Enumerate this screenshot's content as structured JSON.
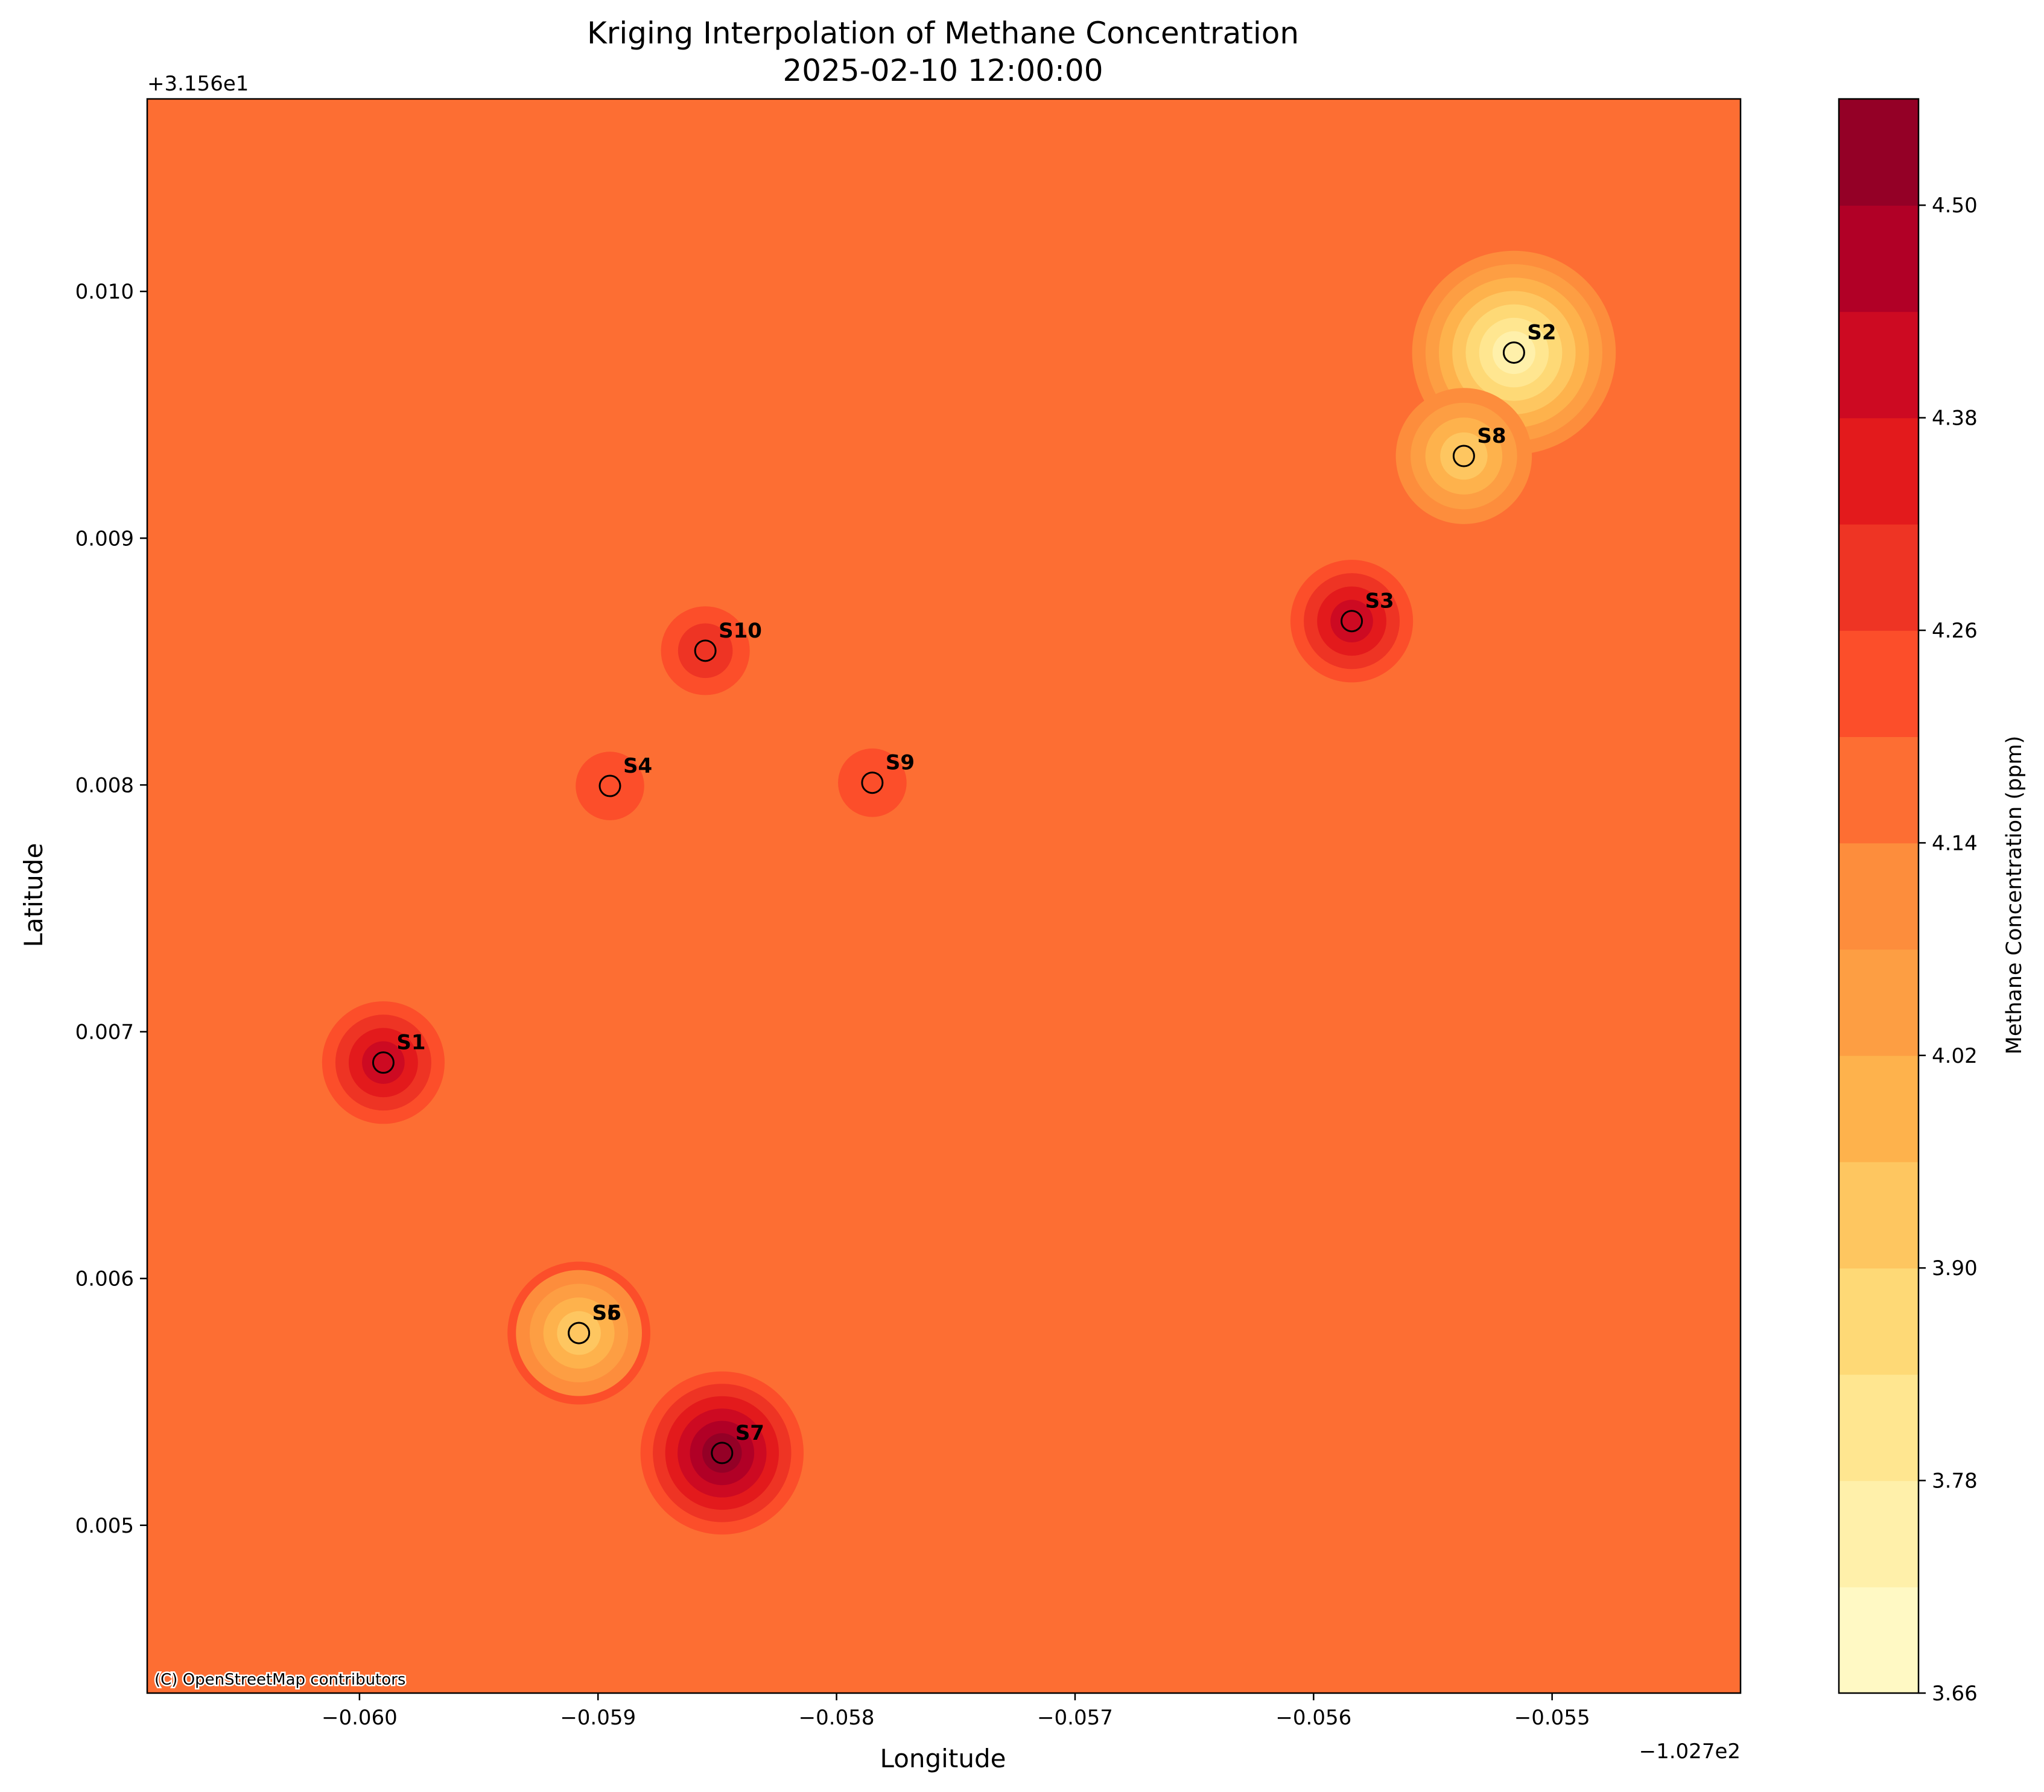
{
  "chart_data": {
    "type": "heatmap",
    "title": "Kriging Interpolation of Methane Concentration",
    "subtitle": "2025-02-10 12:00:00",
    "xlabel": "Longitude",
    "ylabel": "Latitude",
    "x_offset_label": "−1.027e2",
    "y_offset_label": "+3.156e1",
    "xlim": [
      -0.06089,
      -0.05421
    ],
    "ylim": [
      0.00432,
      0.01078
    ],
    "xticks": [
      -0.06,
      -0.059,
      -0.058,
      -0.057,
      -0.056,
      -0.055
    ],
    "xtick_labels": [
      "−0.060",
      "−0.059",
      "−0.058",
      "−0.057",
      "−0.056",
      "−0.055"
    ],
    "yticks": [
      0.005,
      0.006,
      0.007,
      0.008,
      0.009,
      0.01
    ],
    "ytick_labels": [
      "0.005",
      "0.006",
      "0.007",
      "0.008",
      "0.009",
      "0.010"
    ],
    "background_value": 4.18,
    "attribution": "(C) OpenStreetMap contributors",
    "colorbar": {
      "label": "Methane Concentration (ppm)",
      "vmin": 3.66,
      "vmax": 4.56,
      "levels": [
        3.66,
        3.72,
        3.78,
        3.84,
        3.9,
        3.96,
        4.02,
        4.08,
        4.14,
        4.2,
        4.26,
        4.32,
        4.38,
        4.44,
        4.5,
        4.56
      ],
      "colors": [
        "#fff9c4",
        "#fff0aa",
        "#ffe690",
        "#fed976",
        "#fec660",
        "#feb24c",
        "#fd9e43",
        "#fd8d3c",
        "#fd6e33",
        "#fc4e2a",
        "#ee3424",
        "#e31a1c",
        "#cd0a22",
        "#b10026",
        "#940026"
      ],
      "tick_values": [
        3.66,
        3.78,
        3.9,
        4.02,
        4.14,
        4.26,
        4.38,
        4.5
      ],
      "tick_labels": [
        "3.66",
        "3.78",
        "3.90",
        "4.02",
        "4.14",
        "4.26",
        "4.38",
        "4.50"
      ]
    },
    "stations": [
      {
        "label": "S1",
        "lon": -0.0599,
        "lat": 0.006875,
        "value": 4.4
      },
      {
        "label": "S2",
        "lon": -0.05516,
        "lat": 0.009752,
        "value": 3.72
      },
      {
        "label": "S3",
        "lon": -0.05584,
        "lat": 0.008664,
        "value": 4.4
      },
      {
        "label": "S4",
        "lon": -0.05895,
        "lat": 0.007996,
        "value": 4.24
      },
      {
        "label": "S5",
        "lon": -0.05908,
        "lat": 0.005779,
        "value": 4.46
      },
      {
        "label": "S6",
        "lon": -0.05908,
        "lat": 0.005779,
        "value": 3.95
      },
      {
        "label": "S7",
        "lon": -0.05848,
        "lat": 0.005293,
        "value": 4.52
      },
      {
        "label": "S8",
        "lon": -0.05537,
        "lat": 0.009333,
        "value": 3.92
      },
      {
        "label": "S9",
        "lon": -0.05785,
        "lat": 0.008009,
        "value": 4.24
      },
      {
        "label": "S10",
        "lon": -0.05855,
        "lat": 0.008544,
        "value": 4.3
      }
    ]
  }
}
